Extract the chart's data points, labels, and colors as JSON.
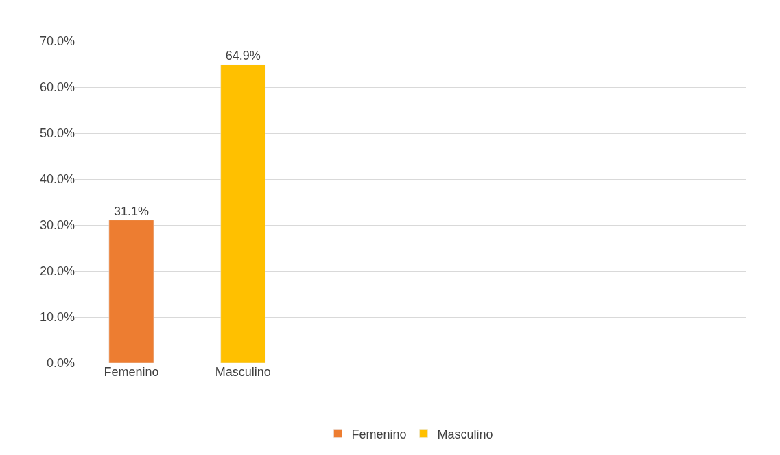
{
  "chart_data": {
    "type": "bar",
    "categories": [
      "Femenino",
      "Masculino"
    ],
    "series": [
      {
        "name": "Femenino",
        "color": "#ed7d31",
        "values": [
          31.1,
          null
        ],
        "value_labels": [
          "31.1%",
          null
        ]
      },
      {
        "name": "Masculino",
        "color": "#ffc000",
        "values": [
          null,
          64.9
        ],
        "value_labels": [
          null,
          "64.9%"
        ]
      }
    ],
    "ylim": [
      0,
      70
    ],
    "yticks": [
      {
        "value": 0,
        "label": "0.0%"
      },
      {
        "value": 10,
        "label": "10.0%"
      },
      {
        "value": 20,
        "label": "20.0%"
      },
      {
        "value": 30,
        "label": "30.0%"
      },
      {
        "value": 40,
        "label": "40.0%"
      },
      {
        "value": 50,
        "label": "50.0%"
      },
      {
        "value": 60,
        "label": "60.0%"
      },
      {
        "value": 70,
        "label": "70.0%"
      }
    ],
    "grid": "y",
    "legend": "bottom"
  }
}
